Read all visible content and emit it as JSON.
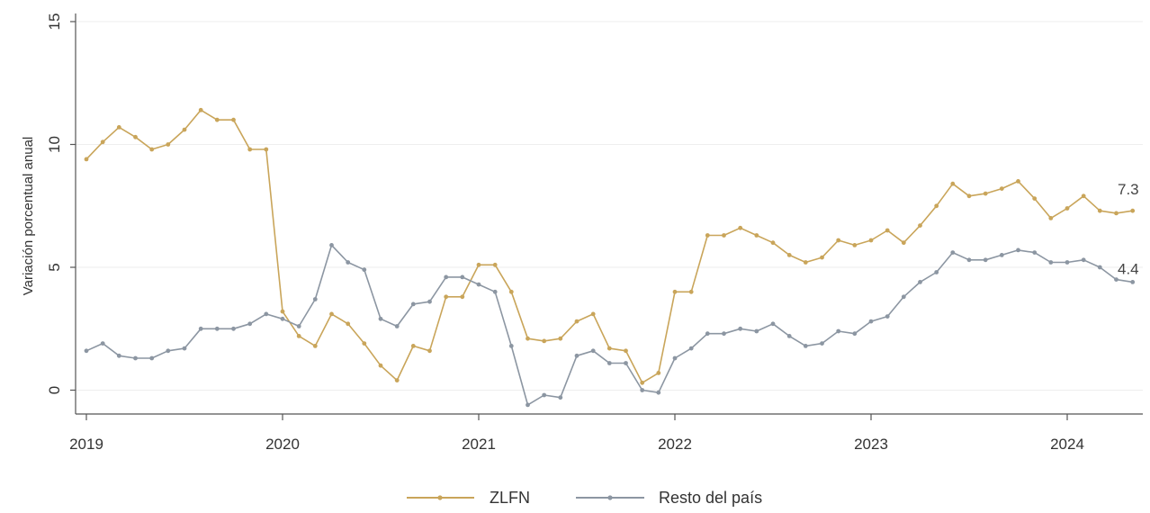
{
  "chart_data": {
    "type": "line",
    "title": "",
    "xlabel": "",
    "ylabel": "Variación porcentual anual",
    "ylim": [
      -1,
      15
    ],
    "yticks": [
      0,
      5,
      10,
      15
    ],
    "xticks": [
      "2019",
      "2020",
      "2021",
      "2022",
      "2023",
      "2024"
    ],
    "x_start": "2019-01",
    "x_end": "2024-05",
    "grid": true,
    "legend_position": "bottom",
    "series": [
      {
        "name": "ZLFN",
        "color": "#C9A55A",
        "end_label": "7.3",
        "values": [
          9.4,
          10.1,
          10.7,
          10.3,
          9.8,
          10.0,
          10.6,
          11.4,
          11.0,
          11.0,
          9.8,
          9.8,
          3.2,
          2.2,
          1.8,
          3.1,
          2.7,
          1.9,
          1.0,
          0.4,
          1.8,
          1.6,
          3.8,
          3.8,
          5.1,
          5.1,
          4.0,
          2.1,
          2.0,
          2.1,
          2.8,
          3.1,
          1.7,
          1.6,
          0.3,
          0.7,
          4.0,
          4.0,
          6.3,
          6.3,
          6.6,
          6.3,
          6.0,
          5.5,
          5.2,
          5.4,
          6.1,
          5.9,
          6.1,
          6.5,
          6.0,
          6.7,
          7.5,
          8.4,
          7.9,
          8.0,
          8.2,
          8.5,
          7.8,
          7.0,
          7.4,
          7.9,
          7.3,
          7.2,
          7.3
        ]
      },
      {
        "name": "Resto del país",
        "color": "#8C96A2",
        "end_label": "4.4",
        "values": [
          1.6,
          1.9,
          1.4,
          1.3,
          1.3,
          1.6,
          1.7,
          2.5,
          2.5,
          2.5,
          2.7,
          3.1,
          2.9,
          2.6,
          3.7,
          5.9,
          5.2,
          4.9,
          2.9,
          2.6,
          3.5,
          3.6,
          4.6,
          4.6,
          4.3,
          4.0,
          1.8,
          -0.6,
          -0.2,
          -0.3,
          1.4,
          1.6,
          1.1,
          1.1,
          0.0,
          -0.1,
          1.3,
          1.7,
          2.3,
          2.3,
          2.5,
          2.4,
          2.7,
          2.2,
          1.8,
          1.9,
          2.4,
          2.3,
          2.8,
          3.0,
          3.8,
          4.4,
          4.8,
          5.6,
          5.3,
          5.3,
          5.5,
          5.7,
          5.6,
          5.2,
          5.2,
          5.3,
          5.0,
          4.5,
          4.4
        ]
      }
    ]
  }
}
